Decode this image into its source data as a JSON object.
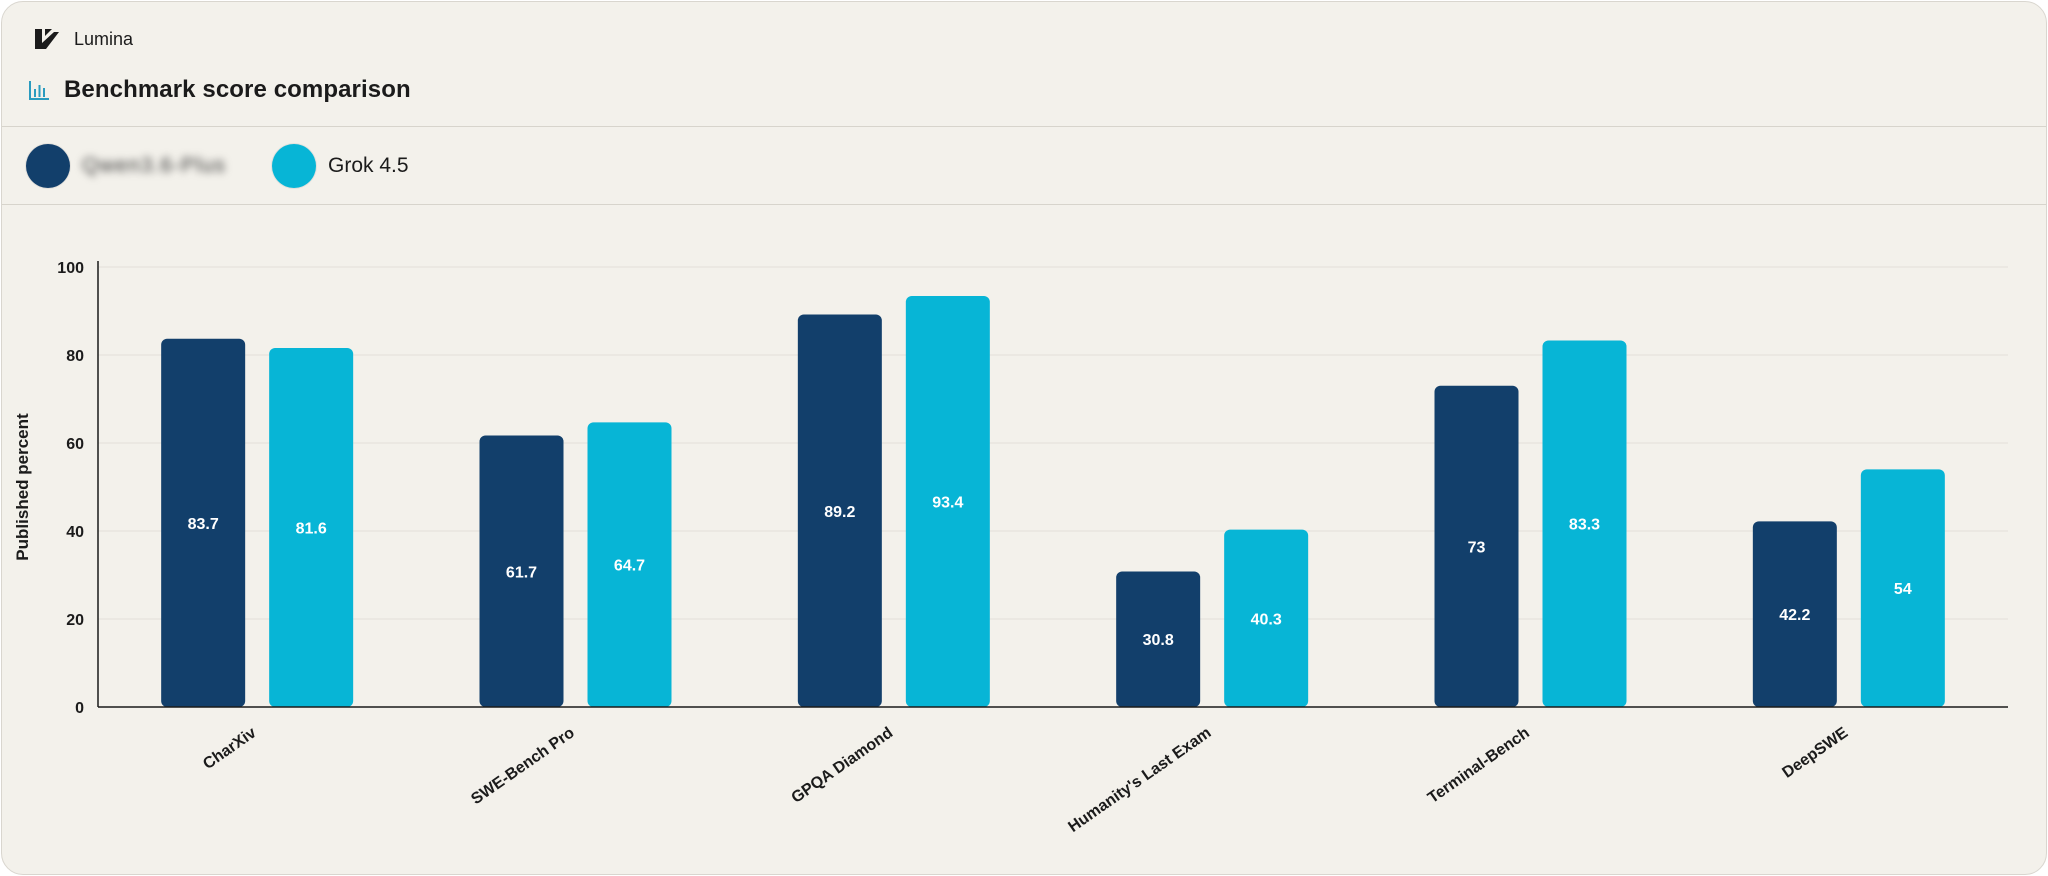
{
  "app": {
    "name": "Lumina",
    "logo_icon": "lumina-logo-icon"
  },
  "header": {
    "title": "Benchmark score comparison",
    "title_icon": "bar-chart-icon"
  },
  "legend": {
    "items": [
      {
        "label": "Qwen3.6-Plus",
        "color": "#123f6b",
        "redacted": true
      },
      {
        "label": "Grok 4.5",
        "color": "#07b5d6",
        "redacted": false
      }
    ]
  },
  "colors": {
    "background": "#f3f1eb",
    "series_dark": "#123f6b",
    "series_light": "#07b5d6",
    "grid": "#e3e0d9"
  },
  "chart_data": {
    "type": "bar",
    "title": "",
    "xlabel": "",
    "ylabel": "Published percent",
    "ylim": [
      0,
      100
    ],
    "yticks": [
      0,
      20,
      40,
      60,
      80,
      100
    ],
    "grid": true,
    "legend_position": "top-left",
    "categories": [
      "CharXiv",
      "SWE-Bench Pro",
      "GPQA Diamond",
      "Humanity's Last Exam",
      "Terminal-Bench",
      "DeepSWE"
    ],
    "series": [
      {
        "name": "Qwen3.6-Plus",
        "color": "#123f6b",
        "values": [
          83.7,
          61.7,
          89.2,
          30.8,
          73,
          42.2
        ]
      },
      {
        "name": "Grok 4.5",
        "color": "#07b5d6",
        "values": [
          81.6,
          64.7,
          93.4,
          40.3,
          83.3,
          54
        ]
      }
    ]
  }
}
